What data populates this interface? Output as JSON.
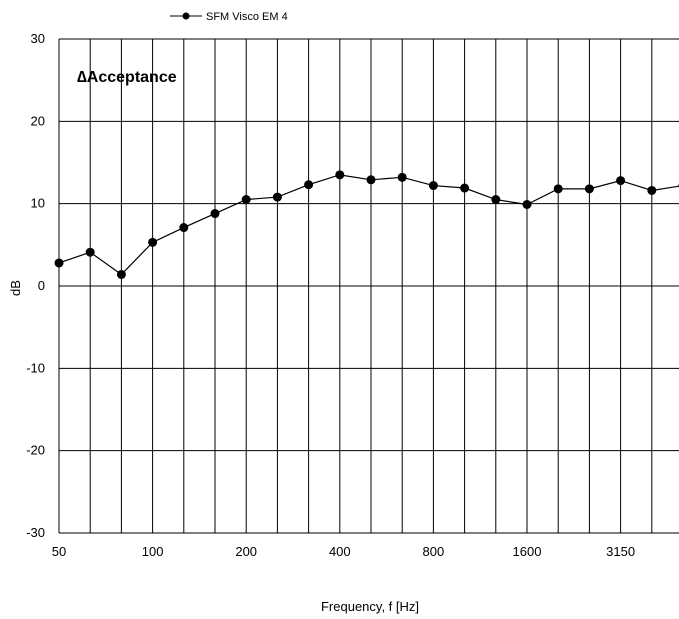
{
  "chart_data": {
    "type": "line",
    "annotation": "∆Acceptance",
    "xlabel": "Frequency, f [Hz]",
    "ylabel": "dB",
    "ylim": [
      -30,
      30
    ],
    "yticks": [
      -30,
      -20,
      -10,
      0,
      10,
      20,
      30
    ],
    "categories": [
      "50",
      "63",
      "80",
      "100",
      "125",
      "160",
      "200",
      "250",
      "315",
      "400",
      "500",
      "630",
      "800",
      "1000",
      "1250",
      "1600",
      "2000",
      "2500",
      "3150",
      "4000",
      "5000"
    ],
    "xtick_labels": [
      "50",
      "100",
      "200",
      "400",
      "800",
      "1600",
      "3150"
    ],
    "grid": true,
    "legend_position": "top",
    "series": [
      {
        "name": "SFM Visco EM 4",
        "color": "#000000",
        "marker": "circle",
        "values": [
          2.8,
          4.1,
          1.4,
          5.3,
          7.1,
          8.8,
          10.5,
          10.8,
          12.3,
          13.5,
          12.9,
          13.2,
          12.2,
          11.9,
          10.5,
          9.9,
          11.8,
          11.8,
          12.8,
          11.6,
          12.2
        ]
      }
    ]
  }
}
